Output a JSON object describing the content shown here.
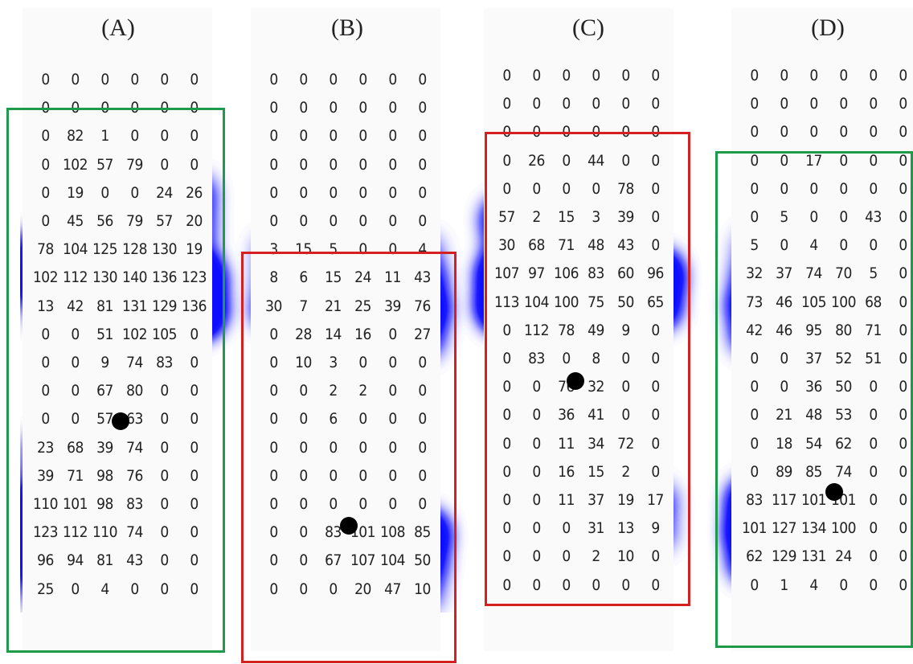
{
  "colors": {
    "green_frame": "#1e9a4a",
    "red_frame": "#d42020",
    "marker": "#000000"
  },
  "panels": [
    {
      "label": "(A)",
      "frame_color": "green",
      "rows": [
        [
          "0",
          "0",
          "0",
          "0",
          "0",
          "0"
        ],
        [
          "0",
          "0",
          "0",
          "0",
          "0",
          "0"
        ],
        [
          "0",
          "82",
          "1",
          "0",
          "0",
          "0"
        ],
        [
          "0",
          "102",
          "57",
          "79",
          "0",
          "0"
        ],
        [
          "0",
          "19",
          "0",
          "0",
          "24",
          "26"
        ],
        [
          "0",
          "45",
          "56",
          "79",
          "57",
          "20"
        ],
        [
          "78",
          "104",
          "125",
          "128",
          "130",
          "19"
        ],
        [
          "102",
          "112",
          "130",
          "140",
          "136",
          "123"
        ],
        [
          "13",
          "42",
          "81",
          "131",
          "129",
          "136"
        ],
        [
          "0",
          "0",
          "51",
          "102",
          "105",
          "0"
        ],
        [
          "0",
          "0",
          "9",
          "74",
          "83",
          "0"
        ],
        [
          "0",
          "0",
          "67",
          "80",
          "0",
          "0"
        ],
        [
          "0",
          "0",
          "57",
          "63",
          "0",
          "0"
        ],
        [
          "23",
          "68",
          "39",
          "74",
          "0",
          "0"
        ],
        [
          "39",
          "71",
          "98",
          "76",
          "0",
          "0"
        ],
        [
          "110",
          "101",
          "98",
          "83",
          "0",
          "0"
        ],
        [
          "123",
          "112",
          "110",
          "74",
          "0",
          "0"
        ],
        [
          "96",
          "94",
          "81",
          "43",
          "0",
          "0"
        ],
        [
          "25",
          "0",
          "4",
          "0",
          "0",
          "0"
        ]
      ]
    },
    {
      "label": "(B)",
      "frame_color": "red",
      "rows": [
        [
          "0",
          "0",
          "0",
          "0",
          "0",
          "0"
        ],
        [
          "0",
          "0",
          "0",
          "0",
          "0",
          "0"
        ],
        [
          "0",
          "0",
          "0",
          "0",
          "0",
          "0"
        ],
        [
          "0",
          "0",
          "0",
          "0",
          "0",
          "0"
        ],
        [
          "0",
          "0",
          "0",
          "0",
          "0",
          "0"
        ],
        [
          "0",
          "0",
          "0",
          "0",
          "0",
          "0"
        ],
        [
          "3",
          "15",
          "5",
          "0",
          "0",
          "4"
        ],
        [
          "8",
          "6",
          "15",
          "24",
          "11",
          "43"
        ],
        [
          "30",
          "7",
          "21",
          "25",
          "39",
          "76"
        ],
        [
          "0",
          "28",
          "14",
          "16",
          "0",
          "27"
        ],
        [
          "0",
          "10",
          "3",
          "0",
          "0",
          "0"
        ],
        [
          "0",
          "0",
          "2",
          "2",
          "0",
          "0"
        ],
        [
          "0",
          "0",
          "6",
          "0",
          "0",
          "0"
        ],
        [
          "0",
          "0",
          "0",
          "0",
          "0",
          "0"
        ],
        [
          "0",
          "0",
          "0",
          "0",
          "0",
          "0"
        ],
        [
          "0",
          "0",
          "0",
          "0",
          "0",
          "0"
        ],
        [
          "0",
          "0",
          "83",
          "101",
          "108",
          "85"
        ],
        [
          "0",
          "0",
          "67",
          "107",
          "104",
          "50"
        ],
        [
          "0",
          "0",
          "0",
          "20",
          "47",
          "10"
        ]
      ]
    },
    {
      "label": "(C)",
      "frame_color": "red",
      "rows": [
        [
          "0",
          "0",
          "0",
          "0",
          "0",
          "0"
        ],
        [
          "0",
          "0",
          "0",
          "0",
          "0",
          "0"
        ],
        [
          "0",
          "0",
          "0",
          "0",
          "0",
          "0"
        ],
        [
          "0",
          "26",
          "0",
          "44",
          "0",
          "0"
        ],
        [
          "0",
          "0",
          "0",
          "0",
          "78",
          "0"
        ],
        [
          "57",
          "2",
          "15",
          "3",
          "39",
          "0"
        ],
        [
          "30",
          "68",
          "71",
          "48",
          "43",
          "0"
        ],
        [
          "107",
          "97",
          "106",
          "83",
          "60",
          "96"
        ],
        [
          "113",
          "104",
          "100",
          "75",
          "50",
          "65"
        ],
        [
          "0",
          "112",
          "78",
          "49",
          "9",
          "0"
        ],
        [
          "0",
          "83",
          "0",
          "8",
          "0",
          "0"
        ],
        [
          "0",
          "0",
          "76",
          "32",
          "0",
          "0"
        ],
        [
          "0",
          "0",
          "36",
          "41",
          "0",
          "0"
        ],
        [
          "0",
          "0",
          "11",
          "34",
          "72",
          "0"
        ],
        [
          "0",
          "0",
          "16",
          "15",
          "2",
          "0"
        ],
        [
          "0",
          "0",
          "11",
          "37",
          "19",
          "17"
        ],
        [
          "0",
          "0",
          "0",
          "31",
          "13",
          "9"
        ],
        [
          "0",
          "0",
          "0",
          "2",
          "10",
          "0"
        ],
        [
          "0",
          "0",
          "0",
          "0",
          "0",
          "0"
        ]
      ]
    },
    {
      "label": "(D)",
      "frame_color": "green",
      "rows": [
        [
          "0",
          "0",
          "0",
          "0",
          "0",
          "0"
        ],
        [
          "0",
          "0",
          "0",
          "0",
          "0",
          "0"
        ],
        [
          "0",
          "0",
          "0",
          "0",
          "0",
          "0"
        ],
        [
          "0",
          "0",
          "17",
          "0",
          "0",
          "0"
        ],
        [
          "0",
          "0",
          "0",
          "0",
          "0",
          "0"
        ],
        [
          "0",
          "5",
          "0",
          "0",
          "43",
          "0"
        ],
        [
          "5",
          "0",
          "4",
          "0",
          "0",
          "0"
        ],
        [
          "32",
          "37",
          "74",
          "70",
          "5",
          "0"
        ],
        [
          "73",
          "46",
          "105",
          "100",
          "68",
          "0"
        ],
        [
          "42",
          "46",
          "95",
          "80",
          "71",
          "0"
        ],
        [
          "0",
          "0",
          "37",
          "52",
          "51",
          "0"
        ],
        [
          "0",
          "0",
          "36",
          "50",
          "0",
          "0"
        ],
        [
          "0",
          "21",
          "48",
          "53",
          "0",
          "0"
        ],
        [
          "0",
          "18",
          "54",
          "62",
          "0",
          "0"
        ],
        [
          "0",
          "89",
          "85",
          "74",
          "0",
          "0"
        ],
        [
          "83",
          "117",
          "101",
          "101",
          "0",
          "0"
        ],
        [
          "101",
          "127",
          "134",
          "100",
          "0",
          "0"
        ],
        [
          "62",
          "129",
          "131",
          "24",
          "0",
          "0"
        ],
        [
          "0",
          "1",
          "4",
          "0",
          "0",
          "0"
        ]
      ]
    }
  ]
}
